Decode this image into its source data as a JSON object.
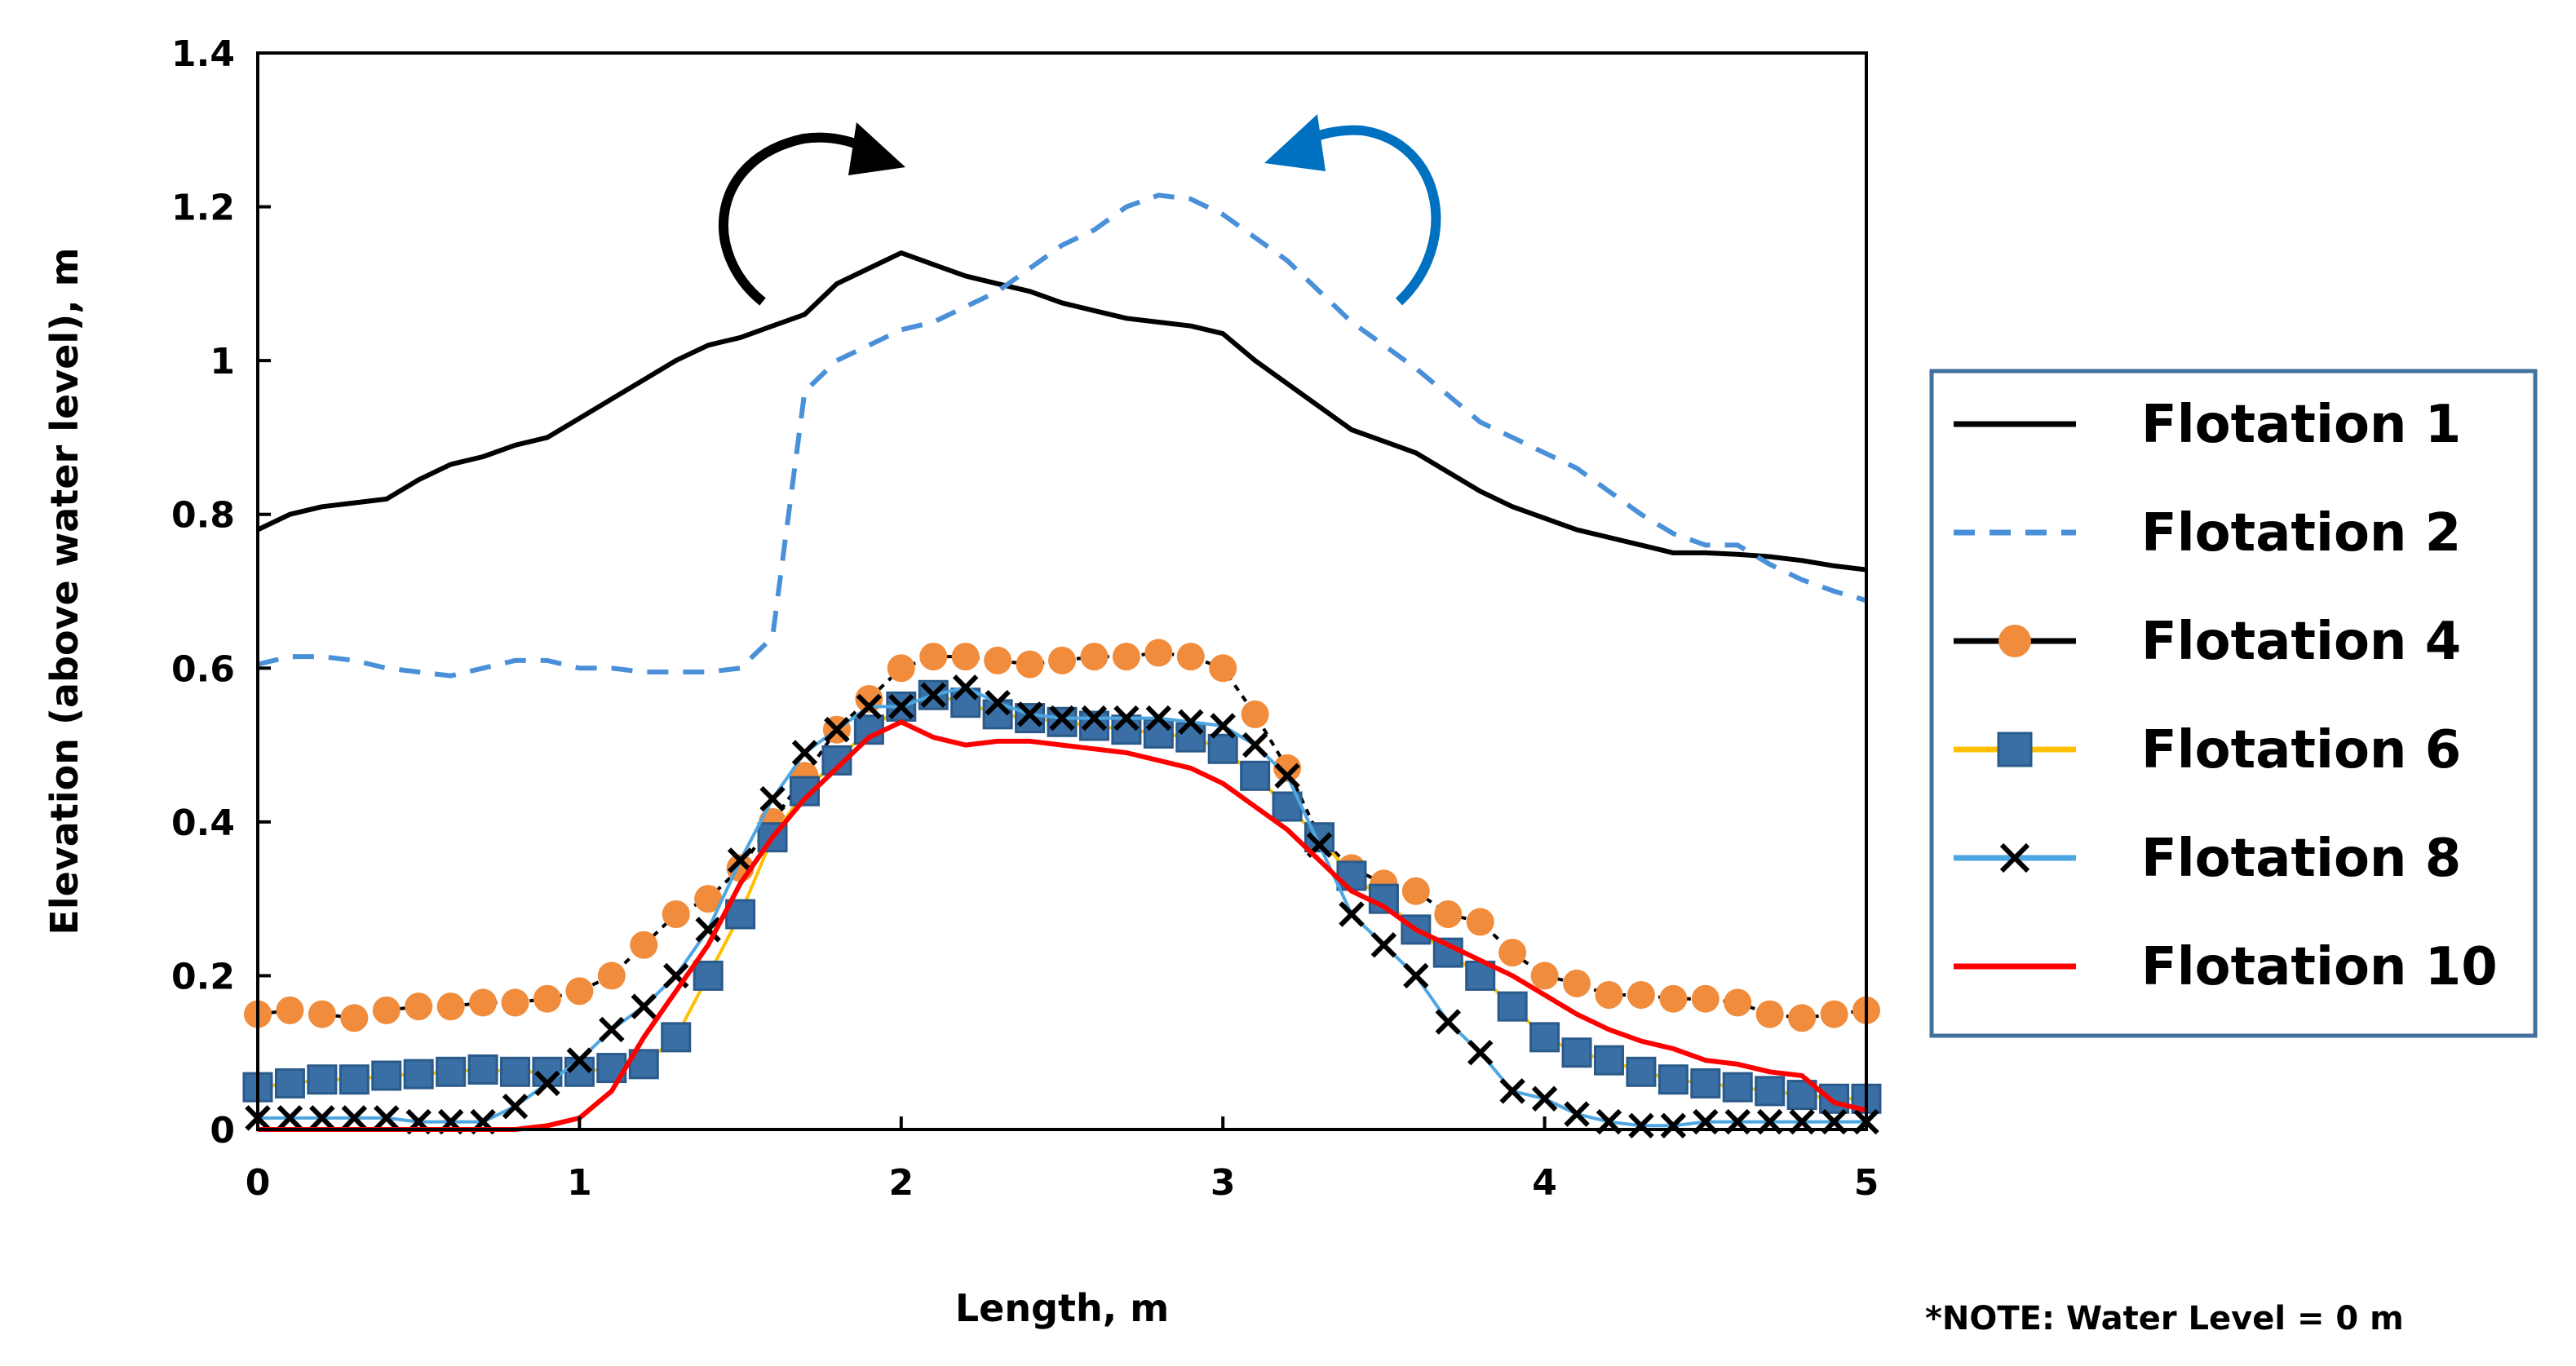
{
  "chart_data": {
    "type": "line",
    "title": "",
    "xlabel": "Length, m",
    "ylabel": "Elevation (above water level), m",
    "xlim": [
      0,
      5
    ],
    "ylim": [
      0,
      1.4
    ],
    "xticks": [
      0,
      1,
      2,
      3,
      4,
      5
    ],
    "yticks": [
      0,
      0.2,
      0.4,
      0.6,
      0.8,
      1,
      1.2,
      1.4
    ],
    "xtick_labels": [
      "0",
      "1",
      "2",
      "3",
      "4",
      "5"
    ],
    "ytick_labels": [
      "0",
      "0.2",
      "0.4",
      "0.6",
      "0.8",
      "1",
      "1.2",
      "1.4"
    ],
    "grid": false,
    "legend_position": "right",
    "note": "*NOTE: Water Level = 0 m",
    "annotations": [
      {
        "name": "black-rotation-arrow",
        "color": "#000000",
        "direction": "clockwise",
        "near_x": 1.8,
        "near_y": 1.25
      },
      {
        "name": "blue-rotation-arrow",
        "color": "#0070C0",
        "direction": "counterclockwise",
        "near_x": 3.3,
        "near_y": 1.25
      }
    ],
    "series": [
      {
        "name": "Flotation 1",
        "color": "#000000",
        "style": "solid",
        "marker": "none",
        "x": [
          0,
          0.1,
          0.2,
          0.3,
          0.4,
          0.5,
          0.6,
          0.7,
          0.8,
          0.9,
          1.0,
          1.1,
          1.2,
          1.3,
          1.4,
          1.5,
          1.6,
          1.7,
          1.8,
          1.9,
          2.0,
          2.1,
          2.2,
          2.3,
          2.4,
          2.5,
          2.6,
          2.7,
          2.8,
          2.9,
          3.0,
          3.1,
          3.2,
          3.3,
          3.4,
          3.5,
          3.6,
          3.7,
          3.8,
          3.9,
          4.0,
          4.1,
          4.2,
          4.3,
          4.4,
          4.5,
          4.6,
          4.7,
          4.8,
          4.9,
          5.0
        ],
        "y": [
          0.78,
          0.8,
          0.81,
          0.815,
          0.82,
          0.845,
          0.865,
          0.875,
          0.89,
          0.9,
          0.925,
          0.95,
          0.975,
          1.0,
          1.02,
          1.03,
          1.045,
          1.06,
          1.1,
          1.12,
          1.14,
          1.125,
          1.11,
          1.1,
          1.09,
          1.075,
          1.065,
          1.055,
          1.05,
          1.045,
          1.035,
          1.0,
          0.97,
          0.94,
          0.91,
          0.895,
          0.88,
          0.855,
          0.83,
          0.81,
          0.795,
          0.78,
          0.77,
          0.76,
          0.75,
          0.75,
          0.748,
          0.745,
          0.74,
          0.733,
          0.728
        ]
      },
      {
        "name": "Flotation 2",
        "color": "#4A90D9",
        "style": "dashed",
        "marker": "none",
        "x": [
          0,
          0.1,
          0.2,
          0.3,
          0.4,
          0.5,
          0.6,
          0.7,
          0.8,
          0.9,
          1.0,
          1.1,
          1.2,
          1.3,
          1.4,
          1.5,
          1.6,
          1.7,
          1.8,
          1.9,
          2.0,
          2.1,
          2.2,
          2.3,
          2.4,
          2.5,
          2.6,
          2.7,
          2.8,
          2.9,
          3.0,
          3.1,
          3.2,
          3.3,
          3.4,
          3.5,
          3.6,
          3.7,
          3.8,
          3.9,
          4.0,
          4.1,
          4.2,
          4.3,
          4.4,
          4.5,
          4.6,
          4.7,
          4.8,
          4.9,
          5.0
        ],
        "y": [
          0.605,
          0.615,
          0.615,
          0.61,
          0.6,
          0.595,
          0.59,
          0.6,
          0.61,
          0.61,
          0.6,
          0.6,
          0.595,
          0.595,
          0.595,
          0.6,
          0.64,
          0.96,
          1.0,
          1.02,
          1.04,
          1.05,
          1.07,
          1.09,
          1.12,
          1.15,
          1.17,
          1.2,
          1.215,
          1.21,
          1.19,
          1.16,
          1.13,
          1.09,
          1.05,
          1.02,
          0.99,
          0.955,
          0.92,
          0.9,
          0.88,
          0.86,
          0.83,
          0.8,
          0.775,
          0.76,
          0.76,
          0.735,
          0.715,
          0.7,
          0.688
        ]
      },
      {
        "name": "Flotation 4",
        "color": "#F08C3C",
        "style": "solid",
        "line_color": "#000000",
        "marker": "circle",
        "x": [
          0,
          0.1,
          0.2,
          0.3,
          0.4,
          0.5,
          0.6,
          0.7,
          0.8,
          0.9,
          1.0,
          1.1,
          1.2,
          1.3,
          1.4,
          1.5,
          1.6,
          1.7,
          1.8,
          1.9,
          2.0,
          2.1,
          2.2,
          2.3,
          2.4,
          2.5,
          2.6,
          2.7,
          2.8,
          2.9,
          3.0,
          3.1,
          3.2,
          3.3,
          3.4,
          3.5,
          3.6,
          3.7,
          3.8,
          3.9,
          4.0,
          4.1,
          4.2,
          4.3,
          4.4,
          4.5,
          4.6,
          4.7,
          4.8,
          4.9,
          5.0
        ],
        "y": [
          0.15,
          0.155,
          0.15,
          0.145,
          0.155,
          0.16,
          0.16,
          0.165,
          0.165,
          0.17,
          0.18,
          0.2,
          0.24,
          0.28,
          0.3,
          0.34,
          0.4,
          0.46,
          0.52,
          0.56,
          0.6,
          0.615,
          0.615,
          0.61,
          0.605,
          0.61,
          0.615,
          0.615,
          0.62,
          0.615,
          0.6,
          0.54,
          0.47,
          0.38,
          0.34,
          0.32,
          0.31,
          0.28,
          0.27,
          0.23,
          0.2,
          0.19,
          0.175,
          0.175,
          0.17,
          0.17,
          0.165,
          0.15,
          0.145,
          0.15,
          0.155
        ]
      },
      {
        "name": "Flotation 6",
        "color": "#3A6FA5",
        "style": "solid",
        "line_color": "#FFC000",
        "marker": "square",
        "x": [
          0,
          0.1,
          0.2,
          0.3,
          0.4,
          0.5,
          0.6,
          0.7,
          0.8,
          0.9,
          1.0,
          1.1,
          1.2,
          1.3,
          1.4,
          1.5,
          1.6,
          1.7,
          1.8,
          1.9,
          2.0,
          2.1,
          2.2,
          2.3,
          2.4,
          2.5,
          2.6,
          2.7,
          2.8,
          2.9,
          3.0,
          3.1,
          3.2,
          3.3,
          3.4,
          3.5,
          3.6,
          3.7,
          3.8,
          3.9,
          4.0,
          4.1,
          4.2,
          4.3,
          4.4,
          4.5,
          4.6,
          4.7,
          4.8,
          4.9,
          5.0
        ],
        "y": [
          0.055,
          0.06,
          0.065,
          0.065,
          0.07,
          0.072,
          0.075,
          0.078,
          0.075,
          0.075,
          0.075,
          0.08,
          0.085,
          0.12,
          0.2,
          0.28,
          0.38,
          0.44,
          0.48,
          0.52,
          0.55,
          0.565,
          0.555,
          0.54,
          0.535,
          0.53,
          0.525,
          0.52,
          0.515,
          0.51,
          0.495,
          0.46,
          0.42,
          0.38,
          0.33,
          0.3,
          0.26,
          0.23,
          0.2,
          0.16,
          0.12,
          0.1,
          0.09,
          0.075,
          0.065,
          0.06,
          0.055,
          0.05,
          0.045,
          0.04,
          0.04
        ]
      },
      {
        "name": "Flotation 8",
        "color": "#000000",
        "style": "solid",
        "line_color": "#4EA6E0",
        "marker": "x",
        "x": [
          0,
          0.1,
          0.2,
          0.3,
          0.4,
          0.5,
          0.6,
          0.7,
          0.8,
          0.9,
          1.0,
          1.1,
          1.2,
          1.3,
          1.4,
          1.5,
          1.6,
          1.7,
          1.8,
          1.9,
          2.0,
          2.1,
          2.2,
          2.3,
          2.4,
          2.5,
          2.6,
          2.7,
          2.8,
          2.9,
          3.0,
          3.1,
          3.2,
          3.3,
          3.4,
          3.5,
          3.6,
          3.7,
          3.8,
          3.9,
          4.0,
          4.1,
          4.2,
          4.3,
          4.4,
          4.5,
          4.6,
          4.7,
          4.8,
          4.9,
          5.0
        ],
        "y": [
          0.015,
          0.015,
          0.015,
          0.015,
          0.015,
          0.01,
          0.01,
          0.01,
          0.03,
          0.06,
          0.09,
          0.13,
          0.16,
          0.2,
          0.26,
          0.35,
          0.43,
          0.49,
          0.52,
          0.55,
          0.55,
          0.565,
          0.575,
          0.555,
          0.54,
          0.535,
          0.535,
          0.535,
          0.535,
          0.53,
          0.525,
          0.5,
          0.46,
          0.37,
          0.28,
          0.24,
          0.2,
          0.14,
          0.1,
          0.05,
          0.04,
          0.02,
          0.01,
          0.005,
          0.005,
          0.01,
          0.01,
          0.01,
          0.01,
          0.01,
          0.01
        ]
      },
      {
        "name": "Flotation 10",
        "color": "#FF0000",
        "style": "solid",
        "marker": "none",
        "x": [
          0,
          0.1,
          0.2,
          0.3,
          0.4,
          0.5,
          0.6,
          0.7,
          0.8,
          0.9,
          1.0,
          1.1,
          1.2,
          1.3,
          1.4,
          1.5,
          1.6,
          1.7,
          1.8,
          1.9,
          2.0,
          2.1,
          2.2,
          2.3,
          2.4,
          2.5,
          2.6,
          2.7,
          2.8,
          2.9,
          3.0,
          3.1,
          3.2,
          3.3,
          3.4,
          3.5,
          3.6,
          3.7,
          3.8,
          3.9,
          4.0,
          4.1,
          4.2,
          4.3,
          4.4,
          4.5,
          4.6,
          4.7,
          4.8,
          4.9,
          5.0
        ],
        "y": [
          0.0,
          0.0,
          0.0,
          0.0,
          0.0,
          0.0,
          0.0,
          0.0,
          0.0,
          0.005,
          0.015,
          0.05,
          0.12,
          0.18,
          0.24,
          0.32,
          0.38,
          0.43,
          0.47,
          0.51,
          0.53,
          0.51,
          0.5,
          0.505,
          0.505,
          0.5,
          0.495,
          0.49,
          0.48,
          0.47,
          0.45,
          0.42,
          0.39,
          0.35,
          0.31,
          0.29,
          0.26,
          0.24,
          0.22,
          0.2,
          0.175,
          0.15,
          0.13,
          0.115,
          0.105,
          0.09,
          0.085,
          0.075,
          0.07,
          0.035,
          0.025
        ]
      }
    ]
  }
}
